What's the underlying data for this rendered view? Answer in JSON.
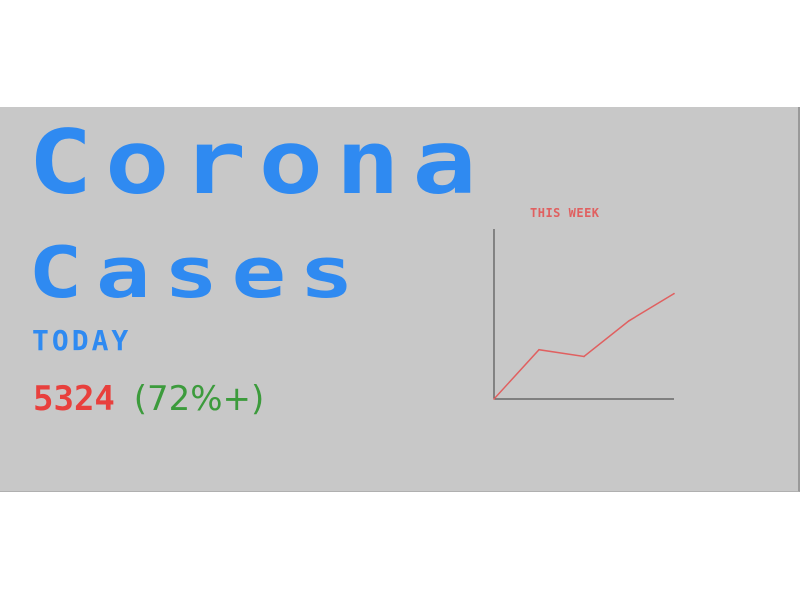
{
  "header": {
    "title_line1": "Corona",
    "title_line2": "Cases",
    "period_label": "TODAY"
  },
  "stats": {
    "today_count": "5324",
    "today_change": "(72%+)"
  },
  "colors": {
    "title": "#2f8af1",
    "count": "#e8403d",
    "change": "#3c9b3c",
    "line": "#e06060",
    "axis": "#555555",
    "background": "#c8c8c8"
  },
  "chart_data": {
    "type": "line",
    "title": "THIS WEEK",
    "xlabel": "",
    "ylabel": "",
    "x": [
      0,
      1,
      2,
      3,
      4
    ],
    "series": [
      {
        "values": [
          0,
          29,
          25,
          46,
          62
        ]
      }
    ],
    "xlim": [
      0,
      4
    ],
    "ylim": [
      0,
      100
    ],
    "grid": false
  }
}
